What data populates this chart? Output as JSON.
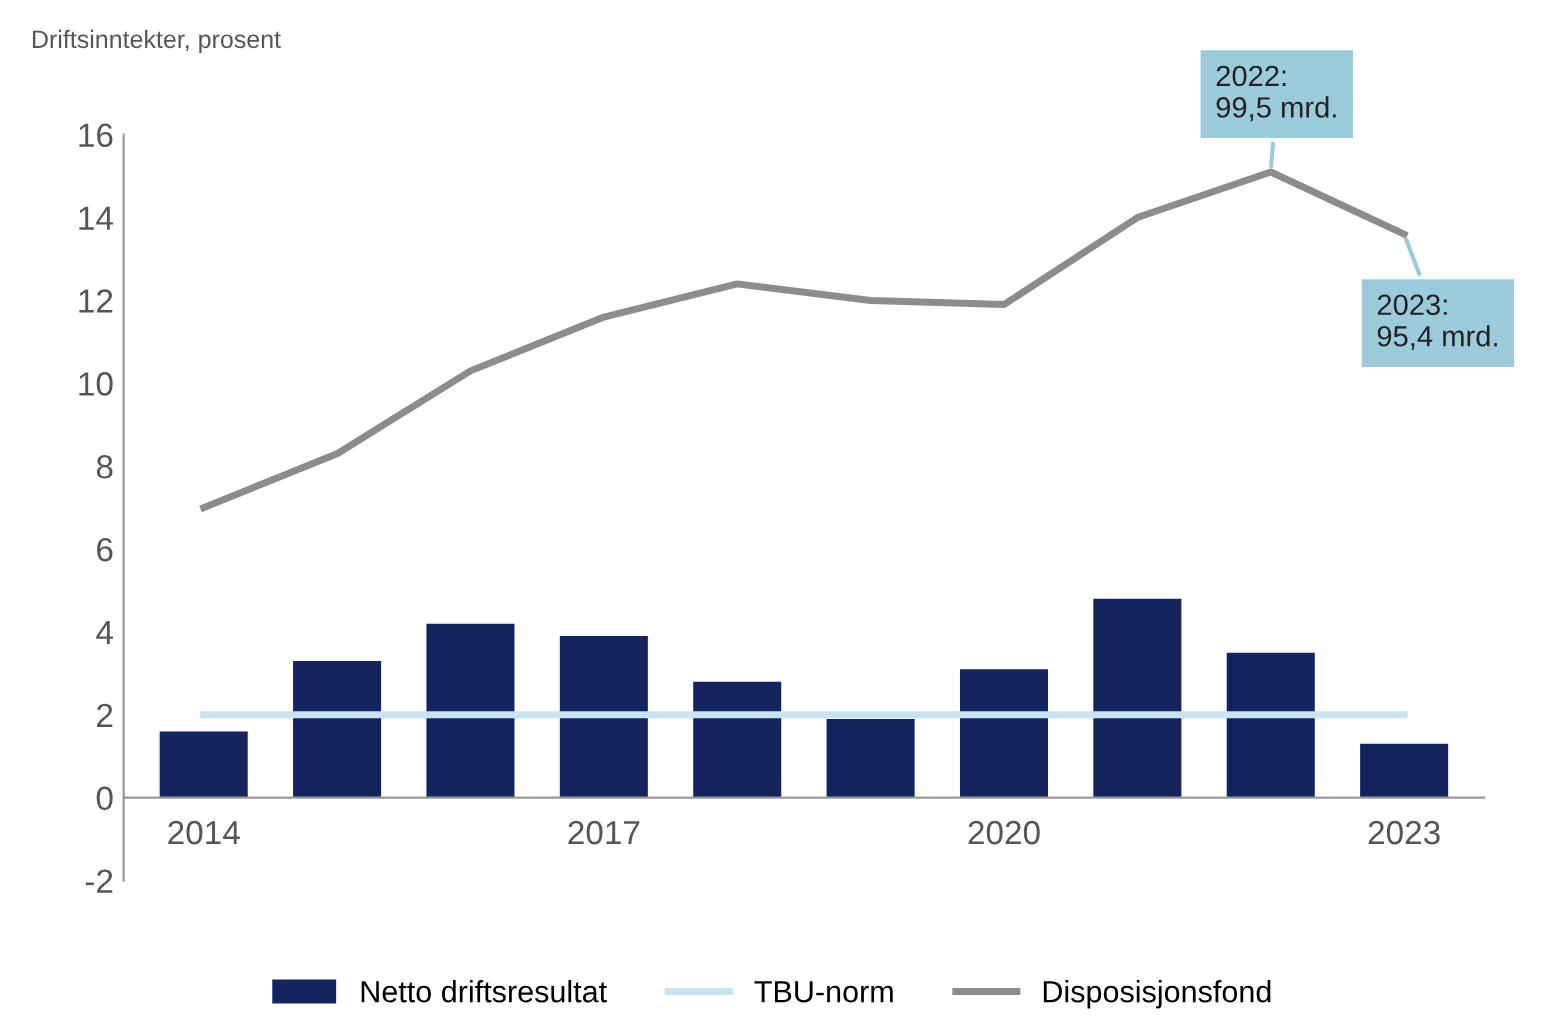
{
  "chart_data": {
    "type": "bar",
    "ylabel": "Driftsinntekter, prosent",
    "categories": [
      "2014",
      null,
      null,
      "2017",
      null,
      null,
      "2020",
      null,
      null,
      "2023"
    ],
    "series": [
      {
        "name": "Netto driftsresultat",
        "color": "#14245e",
        "values": [
          1.6,
          3.3,
          4.2,
          3.9,
          2.8,
          1.9,
          3.1,
          4.8,
          3.5,
          1.3
        ]
      },
      {
        "name": "TBU-norm",
        "type": "line",
        "color": "#c8e4f0",
        "values": [
          2,
          2,
          2,
          2,
          2,
          2,
          2,
          2,
          2,
          2
        ]
      },
      {
        "name": "Disposisjonsfond",
        "type": "line",
        "color": "#8c8c8c",
        "values": [
          7.0,
          8.3,
          10.3,
          11.6,
          12.4,
          12.0,
          11.9,
          14.0,
          15.1,
          13.6
        ]
      }
    ],
    "annotations": [
      "2022:\n99,5 mrd.",
      "2023:\n95,4 mrd."
    ],
    "ylim": [
      -2,
      16
    ],
    "yticks": [
      -2,
      0,
      2,
      4,
      6,
      8,
      10,
      12,
      14,
      16
    ],
    "legend": "bottom",
    "grid": false
  }
}
